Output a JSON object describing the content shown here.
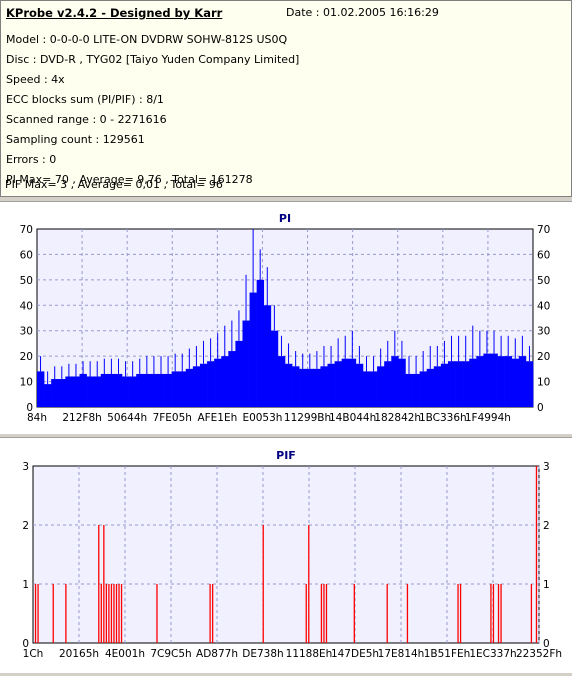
{
  "header": {
    "app_title": "KProbe v2.4.2 - Designed by Karr",
    "date": "Date : 01.02.2005 16:16:29"
  },
  "info_lines": [
    "Model : 0-0-0-0 LITE-ON DVDRW SOHW-812S  US0Q",
    "Disc : DVD-R , TYG02 [Taiyo Yuden Company Limited]",
    "Speed : 4x",
    "ECC blocks sum (PI/PIF) : 8/1",
    "Scanned range : 0 - 2271616",
    "Sampling count : 129561",
    "Errors : 0",
    "PI Max= 70 , Average= 9,76 , Total= 161278",
    "PIF Max= 3 , Average= 0,01 , Total= 96"
  ],
  "colors": {
    "plot_bg": "#f0f0ff",
    "grid": "#9999cc",
    "series": "#0000ff",
    "pif_series": "#ff0000"
  },
  "chart_data": [
    {
      "type": "area",
      "title": "PI",
      "ylim": [
        0,
        70
      ],
      "y_ticks": [
        0,
        10,
        20,
        30,
        40,
        50,
        60,
        70
      ],
      "x_tick_labels": [
        "84h",
        "212F8h",
        "50644h",
        "7FE05h",
        "AFE1Eh",
        "E0053h",
        "11299Bh",
        "14B044h",
        "182842h",
        "1BC336h",
        "1F4994h"
      ],
      "grid": true,
      "series": [
        {
          "values": [
            14,
            9,
            11,
            11,
            12,
            12,
            13,
            12,
            12,
            13,
            13,
            13,
            12,
            12,
            13,
            13,
            13,
            13,
            13,
            14,
            14,
            15,
            16,
            17,
            18,
            19,
            20,
            22,
            26,
            34,
            45,
            50,
            40,
            30,
            20,
            17,
            16,
            15,
            15,
            15,
            16,
            17,
            18,
            19,
            19,
            17,
            14,
            14,
            16,
            18,
            20,
            19,
            13,
            13,
            14,
            15,
            16,
            17,
            18,
            18,
            18,
            19,
            20,
            21,
            21,
            20,
            20,
            19,
            20,
            18
          ],
          "peaks": [
            20,
            14,
            16,
            16,
            17,
            17,
            18,
            18,
            18,
            19,
            19,
            19,
            18,
            18,
            19,
            20,
            20,
            20,
            20,
            21,
            21,
            23,
            24,
            26,
            27,
            29,
            32,
            34,
            38,
            52,
            70,
            62,
            55,
            40,
            28,
            25,
            22,
            21,
            21,
            22,
            24,
            24,
            27,
            28,
            30,
            24,
            20,
            20,
            23,
            26,
            30,
            26,
            20,
            20,
            22,
            24,
            24,
            26,
            28,
            28,
            28,
            32,
            30,
            30,
            30,
            28,
            28,
            27,
            28,
            24
          ]
        }
      ]
    },
    {
      "type": "bar",
      "title": "PIF",
      "ylim": [
        0,
        3
      ],
      "y_ticks": [
        0,
        1,
        2,
        3
      ],
      "x_tick_labels": [
        "1Ch",
        "20165h",
        "4E001h",
        "7C9C5h",
        "AD877h",
        "DE738h",
        "11188Eh",
        "147DE5h",
        "17E814h",
        "1B51FEh",
        "1EC337h",
        "22352Fh"
      ],
      "grid": true,
      "series": [
        {
          "x": [
            0.005,
            0.01,
            0.04,
            0.065,
            0.13,
            0.135,
            0.14,
            0.145,
            0.15,
            0.155,
            0.16,
            0.165,
            0.17,
            0.175,
            0.245,
            0.35,
            0.355,
            0.455,
            0.54,
            0.545,
            0.57,
            0.575,
            0.58,
            0.635,
            0.7,
            0.74,
            0.84,
            0.845,
            0.905,
            0.91,
            0.92,
            0.925,
            0.985,
            0.995
          ],
          "values": [
            1,
            1,
            1,
            1,
            2,
            1,
            2,
            1,
            1,
            1,
            1,
            1,
            1,
            1,
            1,
            1,
            1,
            2,
            1,
            2,
            1,
            1,
            1,
            1,
            1,
            1,
            1,
            1,
            1,
            1,
            1,
            1,
            1,
            3
          ]
        }
      ]
    }
  ]
}
